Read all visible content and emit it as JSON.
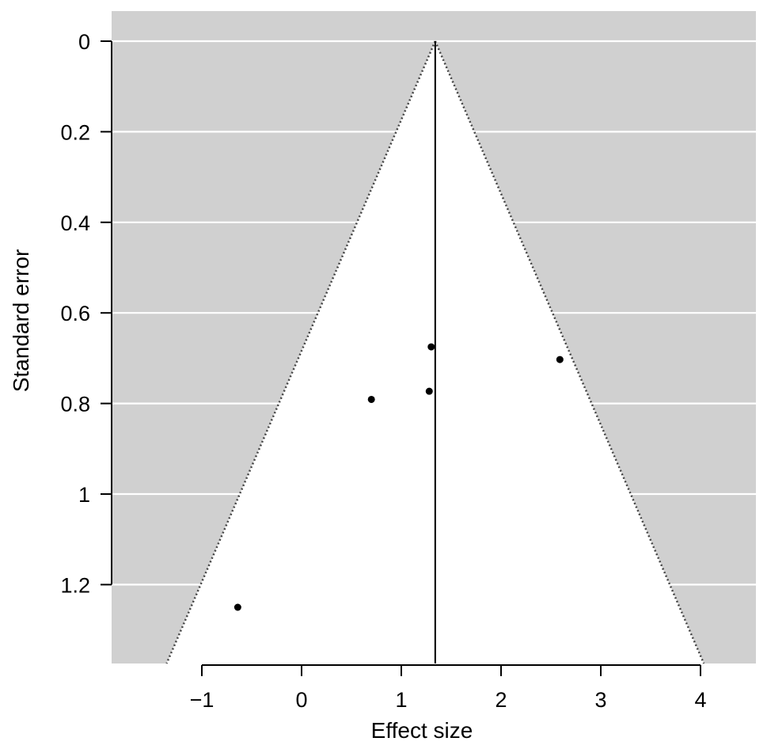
{
  "chart_data": {
    "type": "scatter",
    "subtype": "funnel plot",
    "xlabel": "Effect size",
    "ylabel": "Standard error",
    "xlim": [
      -1.5,
      4.55
    ],
    "ylim": [
      0,
      1.38
    ],
    "y_reversed": true,
    "x_ticks": [
      -1,
      0,
      1,
      2,
      3,
      4
    ],
    "x_tick_labels": [
      "−1",
      "0",
      "1",
      "2",
      "3",
      "4"
    ],
    "y_ticks": [
      0,
      0.2,
      0.4,
      0.6,
      0.8,
      1,
      1.2
    ],
    "y_tick_labels": [
      "0",
      "0.2",
      "0.4",
      "0.6",
      "0.8",
      "1",
      "1.2"
    ],
    "grid": true,
    "summary_effect": 1.34,
    "funnel_z": 1.96,
    "points": [
      {
        "x": 1.3,
        "y": 0.675
      },
      {
        "x": 2.59,
        "y": 0.703
      },
      {
        "x": 1.28,
        "y": 0.773
      },
      {
        "x": 0.7,
        "y": 0.791
      },
      {
        "x": -0.64,
        "y": 1.25
      }
    ],
    "colors": {
      "background_region": "#d0d0d0",
      "funnel_region": "#ffffff",
      "gridline": "#ffffff",
      "points": "#000000"
    }
  }
}
